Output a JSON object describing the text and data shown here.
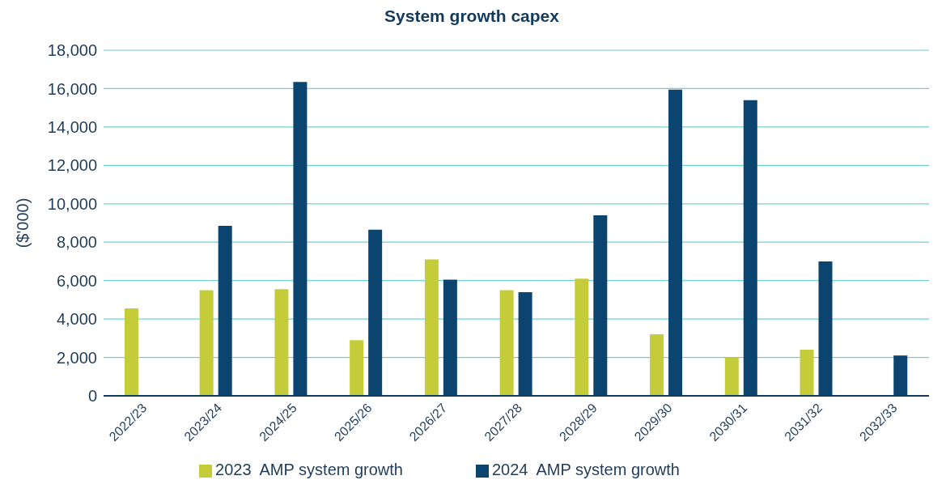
{
  "chart_data": {
    "type": "bar",
    "title": "System growth capex",
    "ylabel": "($'000)",
    "categories": [
      "2022/23",
      "2023/24",
      "2024/25",
      "2025/26",
      "2026/27",
      "2027/28",
      "2028/29",
      "2029/30",
      "2030/31",
      "2031/32",
      "2032/33"
    ],
    "series": [
      {
        "name": "2023  AMP system growth",
        "color": "#c4cc3a",
        "values": [
          4550,
          5500,
          5550,
          2900,
          7100,
          5500,
          6100,
          3200,
          2000,
          2400,
          null
        ]
      },
      {
        "name": "2024  AMP system growth",
        "color": "#0c4470",
        "values": [
          null,
          8850,
          16350,
          8650,
          6050,
          5400,
          9400,
          15950,
          15400,
          7000,
          2100
        ]
      }
    ],
    "ylim": [
      0,
      18000
    ],
    "yticks": [
      0,
      {
        "value": 2000,
        "label": "2,000"
      },
      {
        "value": 4000,
        "label": "4,000"
      },
      {
        "value": 6000,
        "label": "6,000"
      },
      {
        "value": 8000,
        "label": "8,000"
      },
      {
        "value": 10000,
        "label": "10,000"
      },
      {
        "value": 12000,
        "label": "12,000"
      },
      {
        "value": 14000,
        "label": "14,000"
      },
      {
        "value": 16000,
        "label": "16,000"
      },
      {
        "value": 18000,
        "label": "18,000"
      }
    ],
    "grid": "y",
    "legend": "bottom"
  }
}
